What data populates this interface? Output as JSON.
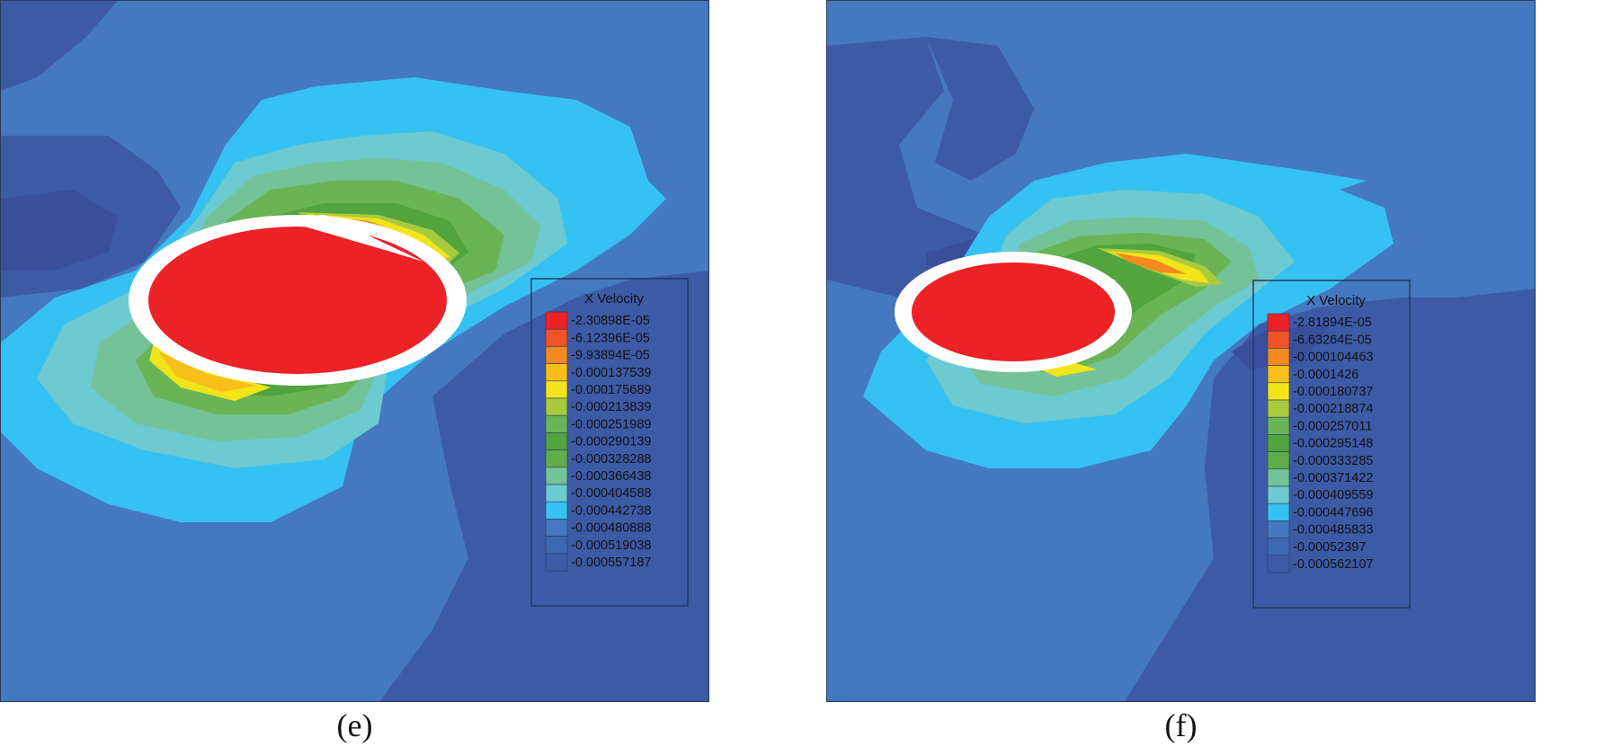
{
  "figure": {
    "palette": {
      "deep_blue": "#3d5aa6",
      "mid_blue": "#4478c0",
      "cyan": "#35c2f2",
      "aqua": "#6ccad0",
      "teal_green": "#74c297",
      "green_light": "#6ab456",
      "green_dark": "#52a43e",
      "yellow_green": "#a8ca3e",
      "yellow": "#f2e41a",
      "orange_yellow": "#f9bf1a",
      "orange": "#f58a1f",
      "red_orange": "#ef5426",
      "red": "#ec2227",
      "white": "#ffffff",
      "legend_border": "#23395e"
    }
  },
  "chart_data": [
    {
      "type": "heatmap",
      "panel_label": "(e)",
      "legend_title": "X Velocity",
      "quantity": "X Velocity",
      "levels": [
        "-2.30898E-05",
        "-6.12396E-05",
        "-9.93894E-05",
        "-0.000137539",
        "-0.000175689",
        "-0.000213839",
        "-0.000251989",
        "-0.000290139",
        "-0.000328288",
        "-0.000366438",
        "-0.000404588",
        "-0.000442738",
        "-0.000480888",
        "-0.000519038",
        "-0.000557187"
      ],
      "colors": [
        "#ec2227",
        "#ef5426",
        "#f58a1f",
        "#f9bf1a",
        "#f2e41a",
        "#a8ca3e",
        "#6ab456",
        "#52a43e",
        "#5ead48",
        "#74c297",
        "#6ccad0",
        "#35c2f2",
        "#4478c0",
        "#3d68b2",
        "#3d5aa6"
      ]
    },
    {
      "type": "heatmap",
      "panel_label": "(f)",
      "legend_title": "X Velocity",
      "quantity": "X Velocity",
      "levels": [
        "-2.81894E-05",
        "-6.63264E-05",
        "-0.000104463",
        "-0.0001426",
        "-0.000180737",
        "-0.000218874",
        "-0.000257011",
        "-0.000295148",
        "-0.000333285",
        "-0.000371422",
        "-0.000409559",
        "-0.000447696",
        "-0.000485833",
        "-0.00052397",
        "-0.000562107"
      ],
      "colors": [
        "#ec2227",
        "#ef5426",
        "#f58a1f",
        "#f9bf1a",
        "#f2e41a",
        "#a8ca3e",
        "#6ab456",
        "#52a43e",
        "#5ead48",
        "#74c297",
        "#6ccad0",
        "#35c2f2",
        "#4478c0",
        "#3d68b2",
        "#3d5aa6"
      ]
    }
  ]
}
